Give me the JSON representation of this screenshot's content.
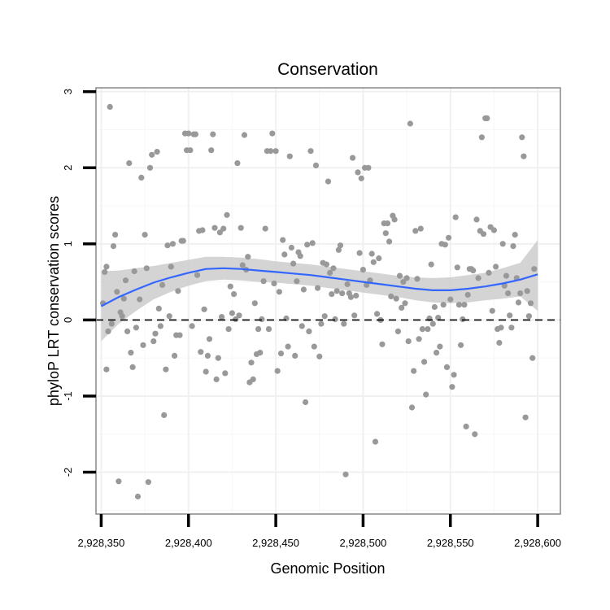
{
  "chart_data": {
    "type": "scatter",
    "title": "Conservation",
    "xlabel": "Genomic Position",
    "ylabel": "phyloP LRT conservation scores",
    "xlim": [
      2928347,
      2928613
    ],
    "ylim": [
      -2.55,
      3.05
    ],
    "x_ticks": [
      2928350,
      2928400,
      2928450,
      2928500,
      2928550,
      2928600
    ],
    "x_tick_labels": [
      "2,928,350",
      "2,928,400",
      "2,928,450",
      "2,928,500",
      "2,928,550",
      "2,928,600"
    ],
    "y_ticks": [
      -2,
      -1,
      0,
      1,
      2,
      3
    ],
    "y_tick_labels": [
      "-2",
      "-1",
      "0",
      "1",
      "2",
      "3"
    ],
    "reference_line": {
      "y": 0,
      "style": "dashed"
    },
    "colors": {
      "points": "#999999",
      "smooth_line": "#3366ff",
      "ribbon": "#cccccc",
      "grid": "#f0f0f0",
      "reference": "#000000",
      "frame": "#888888"
    },
    "points": [
      [
        2928351,
        0.22
      ],
      [
        2928352,
        0.63
      ],
      [
        2928353,
        0.7
      ],
      [
        2928353,
        -0.65
      ],
      [
        2928354,
        -0.15
      ],
      [
        2928355,
        2.8
      ],
      [
        2928356,
        -0.05
      ],
      [
        2928357,
        0.97
      ],
      [
        2928358,
        1.12
      ],
      [
        2928359,
        0.37
      ],
      [
        2928360,
        -2.12
      ],
      [
        2928361,
        0.1
      ],
      [
        2928362,
        0.05
      ],
      [
        2928363,
        0.28
      ],
      [
        2928364,
        0.52
      ],
      [
        2928365,
        -0.15
      ],
      [
        2928366,
        2.06
      ],
      [
        2928367,
        -0.43
      ],
      [
        2928368,
        -0.62
      ],
      [
        2928369,
        0.64
      ],
      [
        2928370,
        -0.1
      ],
      [
        2928371,
        -2.32
      ],
      [
        2928372,
        0.27
      ],
      [
        2928373,
        1.87
      ],
      [
        2928374,
        -0.33
      ],
      [
        2928375,
        1.12
      ],
      [
        2928376,
        0.68
      ],
      [
        2928377,
        -2.13
      ],
      [
        2928378,
        2.0
      ],
      [
        2928379,
        2.17
      ],
      [
        2928380,
        -0.28
      ],
      [
        2928381,
        -0.18
      ],
      [
        2928382,
        2.21
      ],
      [
        2928383,
        0.15
      ],
      [
        2928384,
        -0.08
      ],
      [
        2928385,
        0.46
      ],
      [
        2928386,
        -1.25
      ],
      [
        2928387,
        -0.65
      ],
      [
        2928388,
        0.98
      ],
      [
        2928389,
        0.05
      ],
      [
        2928390,
        0.7
      ],
      [
        2928391,
        1.0
      ],
      [
        2928392,
        -0.47
      ],
      [
        2928393,
        -0.2
      ],
      [
        2928394,
        0.38
      ],
      [
        2928395,
        -0.2
      ],
      [
        2928396,
        1.04
      ],
      [
        2928397,
        1.04
      ],
      [
        2928398,
        2.45
      ],
      [
        2928399,
        2.23
      ],
      [
        2928400,
        2.45
      ],
      [
        2928401,
        2.23
      ],
      [
        2928402,
        -0.08
      ],
      [
        2928403,
        2.44
      ],
      [
        2928404,
        2.44
      ],
      [
        2928405,
        0.59
      ],
      [
        2928406,
        1.17
      ],
      [
        2928407,
        -0.42
      ],
      [
        2928408,
        1.18
      ],
      [
        2928409,
        0.14
      ],
      [
        2928410,
        -0.68
      ],
      [
        2928411,
        -0.47
      ],
      [
        2928412,
        -0.25
      ],
      [
        2928413,
        2.23
      ],
      [
        2928414,
        2.44
      ],
      [
        2928415,
        1.21
      ],
      [
        2928416,
        -0.78
      ],
      [
        2928417,
        -0.5
      ],
      [
        2928418,
        1.15
      ],
      [
        2928419,
        0.04
      ],
      [
        2928420,
        1.2
      ],
      [
        2928421,
        -0.7
      ],
      [
        2928422,
        1.38
      ],
      [
        2928423,
        -0.12
      ],
      [
        2928424,
        0.44
      ],
      [
        2928425,
        0.09
      ],
      [
        2928426,
        0.34
      ],
      [
        2928427,
        0.01
      ],
      [
        2928428,
        2.06
      ],
      [
        2928429,
        0.06
      ],
      [
        2928430,
        1.21
      ],
      [
        2928431,
        0.72
      ],
      [
        2928432,
        2.43
      ],
      [
        2928433,
        0.66
      ],
      [
        2928434,
        0.83
      ],
      [
        2928435,
        -0.82
      ],
      [
        2928436,
        -0.56
      ],
      [
        2928437,
        -0.78
      ],
      [
        2928438,
        0.22
      ],
      [
        2928439,
        -0.45
      ],
      [
        2928440,
        -0.12
      ],
      [
        2928441,
        -0.43
      ],
      [
        2928442,
        0.01
      ],
      [
        2928443,
        0.51
      ],
      [
        2928444,
        1.2
      ],
      [
        2928445,
        2.22
      ],
      [
        2928446,
        -0.12
      ],
      [
        2928447,
        2.22
      ],
      [
        2928448,
        2.45
      ],
      [
        2928449,
        0.48
      ],
      [
        2928450,
        2.22
      ],
      [
        2928451,
        -0.67
      ],
      [
        2928452,
        0.37
      ],
      [
        2928453,
        -0.44
      ],
      [
        2928454,
        1.05
      ],
      [
        2928455,
        0.86
      ],
      [
        2928456,
        0.02
      ],
      [
        2928457,
        -0.35
      ],
      [
        2928458,
        2.15
      ],
      [
        2928459,
        0.95
      ],
      [
        2928460,
        0.74
      ],
      [
        2928461,
        -0.47
      ],
      [
        2928462,
        0.51
      ],
      [
        2928463,
        0.89
      ],
      [
        2928464,
        0.84
      ],
      [
        2928465,
        -0.08
      ],
      [
        2928466,
        0.4
      ],
      [
        2928467,
        -1.08
      ],
      [
        2928468,
        0.99
      ],
      [
        2928469,
        -0.15
      ],
      [
        2928470,
        2.22
      ],
      [
        2928471,
        1.01
      ],
      [
        2928472,
        -0.35
      ],
      [
        2928473,
        2.03
      ],
      [
        2928474,
        0.42
      ],
      [
        2928475,
        -0.48
      ],
      [
        2928476,
        -0.05
      ],
      [
        2928477,
        0.75
      ],
      [
        2928478,
        0.05
      ],
      [
        2928479,
        0.73
      ],
      [
        2928480,
        1.82
      ],
      [
        2928481,
        0.62
      ],
      [
        2928482,
        0.34
      ],
      [
        2928483,
        0.68
      ],
      [
        2928484,
        0.01
      ],
      [
        2928485,
        0.38
      ],
      [
        2928486,
        0.92
      ],
      [
        2928487,
        0.98
      ],
      [
        2928488,
        0.35
      ],
      [
        2928489,
        -0.05
      ],
      [
        2928490,
        -2.03
      ],
      [
        2928491,
        0.47
      ],
      [
        2928492,
        0.35
      ],
      [
        2928493,
        0.3
      ],
      [
        2928494,
        2.13
      ],
      [
        2928495,
        0.06
      ],
      [
        2928496,
        0.32
      ],
      [
        2928497,
        1.94
      ],
      [
        2928498,
        0.88
      ],
      [
        2928499,
        1.86
      ],
      [
        2928500,
        0.66
      ],
      [
        2928501,
        2.0
      ],
      [
        2928502,
        0.46
      ],
      [
        2928503,
        2.0
      ],
      [
        2928504,
        0.52
      ],
      [
        2928505,
        0.87
      ],
      [
        2928506,
        0.76
      ],
      [
        2928507,
        -1.6
      ],
      [
        2928508,
        0.08
      ],
      [
        2928509,
        0.81
      ],
      [
        2928510,
        0.0
      ],
      [
        2928511,
        -0.32
      ],
      [
        2928512,
        1.27
      ],
      [
        2928513,
        1.14
      ],
      [
        2928514,
        1.27
      ],
      [
        2928515,
        1.03
      ],
      [
        2928516,
        0.31
      ],
      [
        2928517,
        1.37
      ],
      [
        2928518,
        1.32
      ],
      [
        2928519,
        0.28
      ],
      [
        2928520,
        -0.15
      ],
      [
        2928521,
        0.58
      ],
      [
        2928522,
        0.16
      ],
      [
        2928523,
        0.5
      ],
      [
        2928524,
        0.22
      ],
      [
        2928525,
        0.55
      ],
      [
        2928526,
        -0.28
      ],
      [
        2928527,
        2.58
      ],
      [
        2928528,
        -1.15
      ],
      [
        2928529,
        -0.67
      ],
      [
        2928530,
        1.17
      ],
      [
        2928531,
        0.54
      ],
      [
        2928532,
        -0.25
      ],
      [
        2928533,
        1.2
      ],
      [
        2928534,
        -0.12
      ],
      [
        2928535,
        -0.55
      ],
      [
        2928536,
        -0.98
      ],
      [
        2928537,
        -0.12
      ],
      [
        2928538,
        0.02
      ],
      [
        2928539,
        0.73
      ],
      [
        2928540,
        -0.05
      ],
      [
        2928541,
        0.17
      ],
      [
        2928542,
        -0.43
      ],
      [
        2928543,
        0.03
      ],
      [
        2928544,
        -0.35
      ],
      [
        2928545,
        1.0
      ],
      [
        2928546,
        0.2
      ],
      [
        2928547,
        0.99
      ],
      [
        2928548,
        -0.62
      ],
      [
        2928549,
        1.08
      ],
      [
        2928550,
        0.27
      ],
      [
        2928551,
        -0.88
      ],
      [
        2928552,
        -0.72
      ],
      [
        2928553,
        1.35
      ],
      [
        2928554,
        0.69
      ],
      [
        2928555,
        0.2
      ],
      [
        2928556,
        -0.33
      ],
      [
        2928557,
        0.01
      ],
      [
        2928558,
        0.2
      ],
      [
        2928559,
        -1.4
      ],
      [
        2928560,
        0.33
      ],
      [
        2928561,
        0.67
      ],
      [
        2928562,
        0.67
      ],
      [
        2928563,
        0.65
      ],
      [
        2928564,
        -1.5
      ],
      [
        2928565,
        1.32
      ],
      [
        2928566,
        0.55
      ],
      [
        2928567,
        1.17
      ],
      [
        2928568,
        2.4
      ],
      [
        2928569,
        1.13
      ],
      [
        2928570,
        2.65
      ],
      [
        2928571,
        2.65
      ],
      [
        2928572,
        0.62
      ],
      [
        2928573,
        1.22
      ],
      [
        2928574,
        0.12
      ],
      [
        2928575,
        1.18
      ],
      [
        2928576,
        0.7
      ],
      [
        2928577,
        -0.12
      ],
      [
        2928578,
        -0.3
      ],
      [
        2928579,
        -0.1
      ],
      [
        2928580,
        1.0
      ],
      [
        2928581,
        0.45
      ],
      [
        2928582,
        0.58
      ],
      [
        2928583,
        0.35
      ],
      [
        2928584,
        0.06
      ],
      [
        2928585,
        -0.1
      ],
      [
        2928586,
        0.97
      ],
      [
        2928587,
        1.12
      ],
      [
        2928588,
        0.55
      ],
      [
        2928589,
        0.23
      ],
      [
        2928590,
        0.35
      ],
      [
        2928591,
        2.4
      ],
      [
        2928592,
        2.15
      ],
      [
        2928593,
        -1.28
      ],
      [
        2928594,
        0.38
      ],
      [
        2928595,
        0.05
      ],
      [
        2928596,
        0.22
      ],
      [
        2928597,
        -0.5
      ],
      [
        2928598,
        0.67
      ]
    ],
    "smooth": {
      "x": [
        2928350,
        2928360,
        2928370,
        2928380,
        2928390,
        2928400,
        2928410,
        2928420,
        2928430,
        2928440,
        2928450,
        2928460,
        2928470,
        2928480,
        2928490,
        2928500,
        2928510,
        2928520,
        2928530,
        2928540,
        2928550,
        2928560,
        2928570,
        2928580,
        2928590,
        2928600
      ],
      "y": [
        0.18,
        0.3,
        0.4,
        0.49,
        0.56,
        0.62,
        0.67,
        0.68,
        0.67,
        0.65,
        0.63,
        0.61,
        0.59,
        0.56,
        0.53,
        0.5,
        0.47,
        0.44,
        0.41,
        0.39,
        0.39,
        0.41,
        0.44,
        0.48,
        0.53,
        0.6
      ],
      "ymin": [
        -0.28,
        -0.05,
        0.12,
        0.27,
        0.37,
        0.45,
        0.51,
        0.53,
        0.52,
        0.5,
        0.49,
        0.47,
        0.45,
        0.42,
        0.39,
        0.36,
        0.33,
        0.3,
        0.26,
        0.23,
        0.22,
        0.23,
        0.26,
        0.28,
        0.31,
        0.12
      ],
      "ymax": [
        0.64,
        0.65,
        0.68,
        0.71,
        0.75,
        0.79,
        0.83,
        0.83,
        0.82,
        0.8,
        0.77,
        0.75,
        0.73,
        0.7,
        0.67,
        0.64,
        0.61,
        0.58,
        0.56,
        0.55,
        0.56,
        0.59,
        0.62,
        0.68,
        0.75,
        1.05
      ]
    }
  }
}
